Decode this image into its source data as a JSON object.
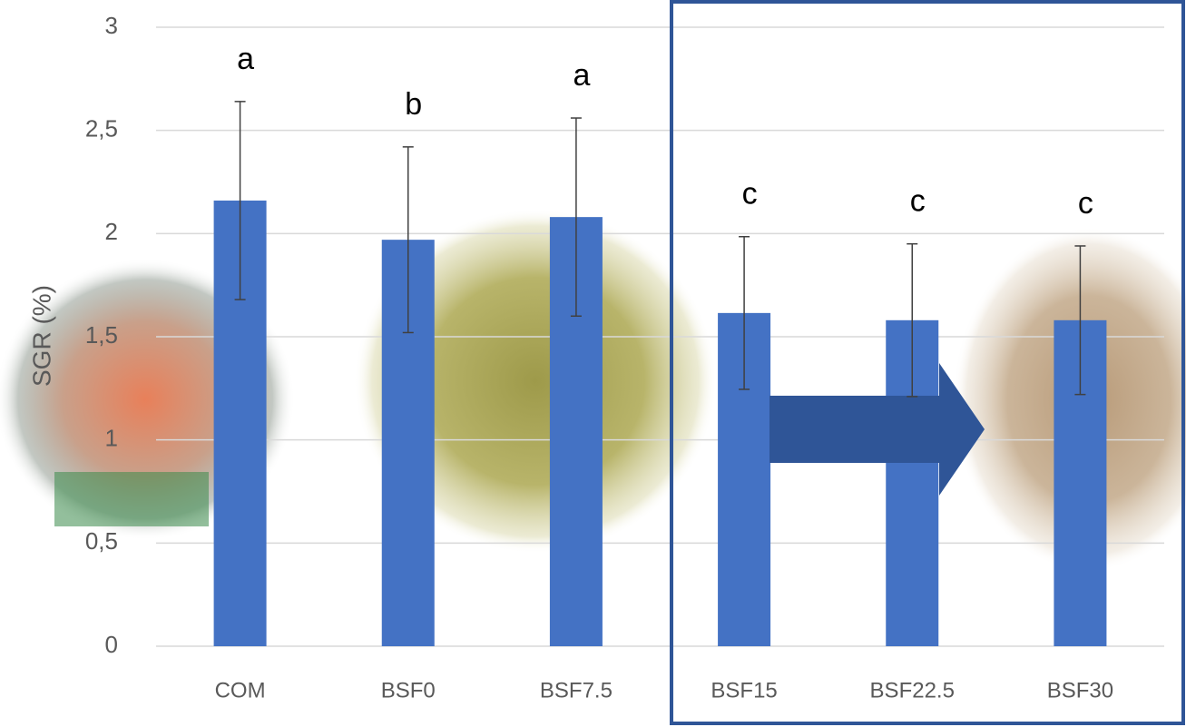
{
  "chart_data": {
    "type": "bar",
    "y_label": "SGR (%)",
    "categories": [
      "COM",
      "BSF0",
      "BSF7.5",
      "BSF15",
      "BSF22.5",
      "BSF30"
    ],
    "values": [
      2.16,
      1.97,
      2.08,
      1.615,
      1.58,
      1.58
    ],
    "errors": [
      0.48,
      0.45,
      0.48,
      0.37,
      0.37,
      0.36
    ],
    "letters": [
      "a",
      "b",
      "a",
      "c",
      "c",
      "c"
    ],
    "color": "#4472c4",
    "ylim": [
      0,
      3
    ],
    "yticks": [
      0,
      {
        "value": 0.5,
        "label": "0,5"
      },
      1,
      {
        "value": 1.5,
        "label": "1,5"
      },
      2,
      {
        "value": 2.5,
        "label": "2,5"
      },
      3
    ],
    "grid": true
  }
}
